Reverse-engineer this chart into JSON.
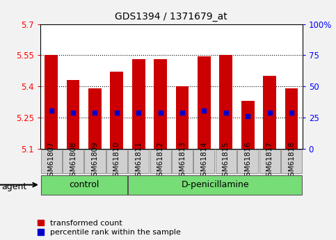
{
  "title": "GDS1394 / 1371679_at",
  "samples": [
    "GSM61807",
    "GSM61808",
    "GSM61809",
    "GSM61810",
    "GSM61811",
    "GSM61812",
    "GSM61813",
    "GSM61814",
    "GSM61815",
    "GSM61816",
    "GSM61817",
    "GSM61818"
  ],
  "bar_values": [
    5.55,
    5.43,
    5.39,
    5.47,
    5.53,
    5.53,
    5.4,
    5.545,
    5.55,
    5.33,
    5.45,
    5.39
  ],
  "percentile_values": [
    5.285,
    5.275,
    5.275,
    5.275,
    5.275,
    5.275,
    5.275,
    5.285,
    5.275,
    5.258,
    5.275,
    5.275
  ],
  "y_min": 5.1,
  "y_max": 5.7,
  "y_ticks": [
    5.1,
    5.25,
    5.4,
    5.55,
    5.7
  ],
  "y_tick_labels": [
    "5.1",
    "5.25",
    "5.4",
    "5.55",
    "5.7"
  ],
  "y2_tick_labels": [
    "0",
    "25",
    "50",
    "75",
    "100%"
  ],
  "dotted_lines": [
    5.25,
    5.4,
    5.55
  ],
  "bar_bottom": 5.1,
  "bar_color": "#cc0000",
  "percentile_color": "#0000cc",
  "control_samples": 4,
  "control_label": "control",
  "treatment_label": "D-penicillamine",
  "agent_label": "agent",
  "legend_bar_label": "transformed count",
  "legend_percentile_label": "percentile rank within the sample",
  "bar_width": 0.6,
  "bg_color": "#f2f2f2",
  "plot_bg": "#ffffff",
  "group_bg_color": "#77dd77",
  "sample_box_color": "#d0d0d0",
  "title_fontsize": 10,
  "axis_fontsize": 8.5,
  "legend_fontsize": 8,
  "label_fontsize": 7.5
}
